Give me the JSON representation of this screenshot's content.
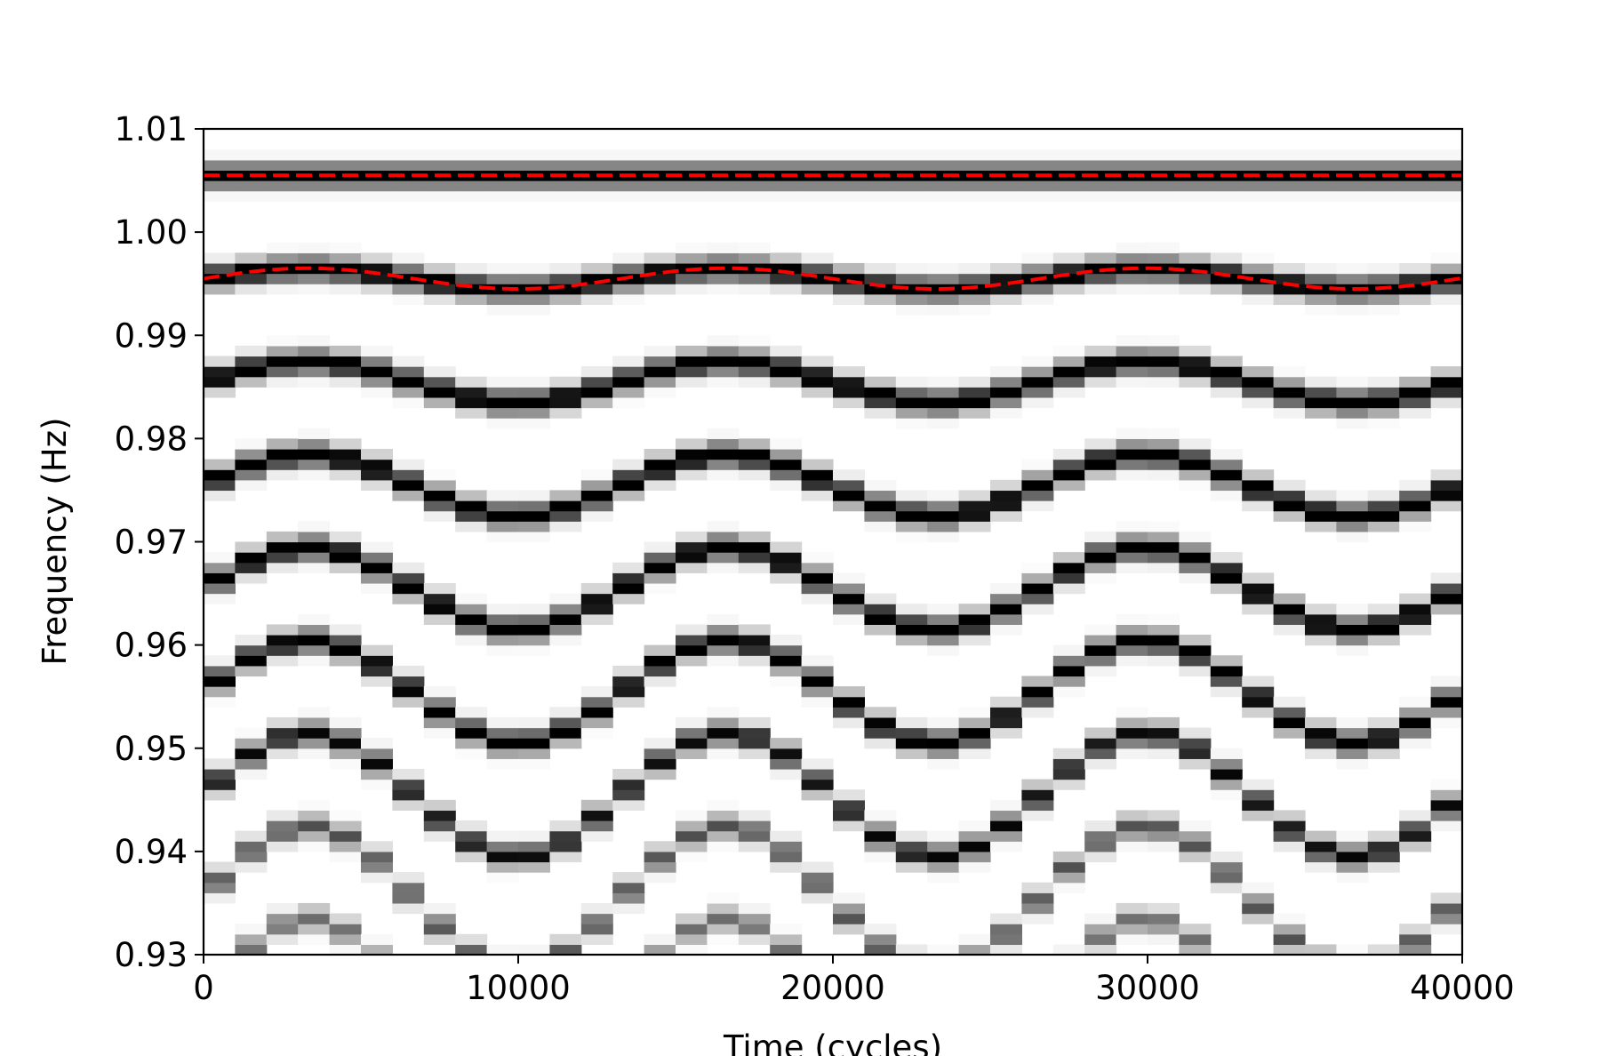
{
  "chart_data": {
    "type": "heatmap",
    "title": "",
    "xlabel": "Time (cycles)",
    "ylabel": "Frequency (Hz)",
    "xlim": [
      0,
      40000
    ],
    "ylim": [
      0.93,
      1.01
    ],
    "xticks": [
      0,
      10000,
      20000,
      30000,
      40000
    ],
    "xtick_labels": [
      "0",
      "10000",
      "20000",
      "30000",
      "40000"
    ],
    "yticks": [
      0.93,
      0.94,
      0.95,
      0.96,
      0.97,
      0.98,
      0.99,
      1.0,
      1.01
    ],
    "ytick_labels": [
      "0.93",
      "0.94",
      "0.95",
      "0.96",
      "0.97",
      "0.98",
      "0.99",
      "1.00",
      "1.01"
    ],
    "colormap": "greys",
    "grid": false,
    "background_color": "#ffffff",
    "time_bins": 40,
    "frequency_bins": 80,
    "modulation_period_cycles": 13300,
    "constant_band": {
      "frequency_hz": 1.0055
    },
    "modulated_bands": [
      {
        "center_hz": 0.9955,
        "deviation_hz": 0.001,
        "intensity": 1.0
      },
      {
        "center_hz": 0.9855,
        "deviation_hz": 0.002,
        "intensity": 1.0
      },
      {
        "center_hz": 0.9755,
        "deviation_hz": 0.003,
        "intensity": 1.0
      },
      {
        "center_hz": 0.9655,
        "deviation_hz": 0.004,
        "intensity": 1.0
      },
      {
        "center_hz": 0.9555,
        "deviation_hz": 0.005,
        "intensity": 0.95
      },
      {
        "center_hz": 0.9455,
        "deviation_hz": 0.006,
        "intensity": 0.85
      },
      {
        "center_hz": 0.9355,
        "deviation_hz": 0.007,
        "intensity": 0.6
      },
      {
        "center_hz": 0.9255,
        "deviation_hz": 0.008,
        "intensity": 0.5
      }
    ],
    "overlay_series": [
      {
        "style": "dashed",
        "color": "#ff0000",
        "kind": "constant",
        "frequency_hz": 1.0055
      },
      {
        "style": "dashed",
        "color": "#ff0000",
        "kind": "sinusoid",
        "center_hz": 0.9955,
        "deviation_hz": 0.001
      }
    ]
  }
}
